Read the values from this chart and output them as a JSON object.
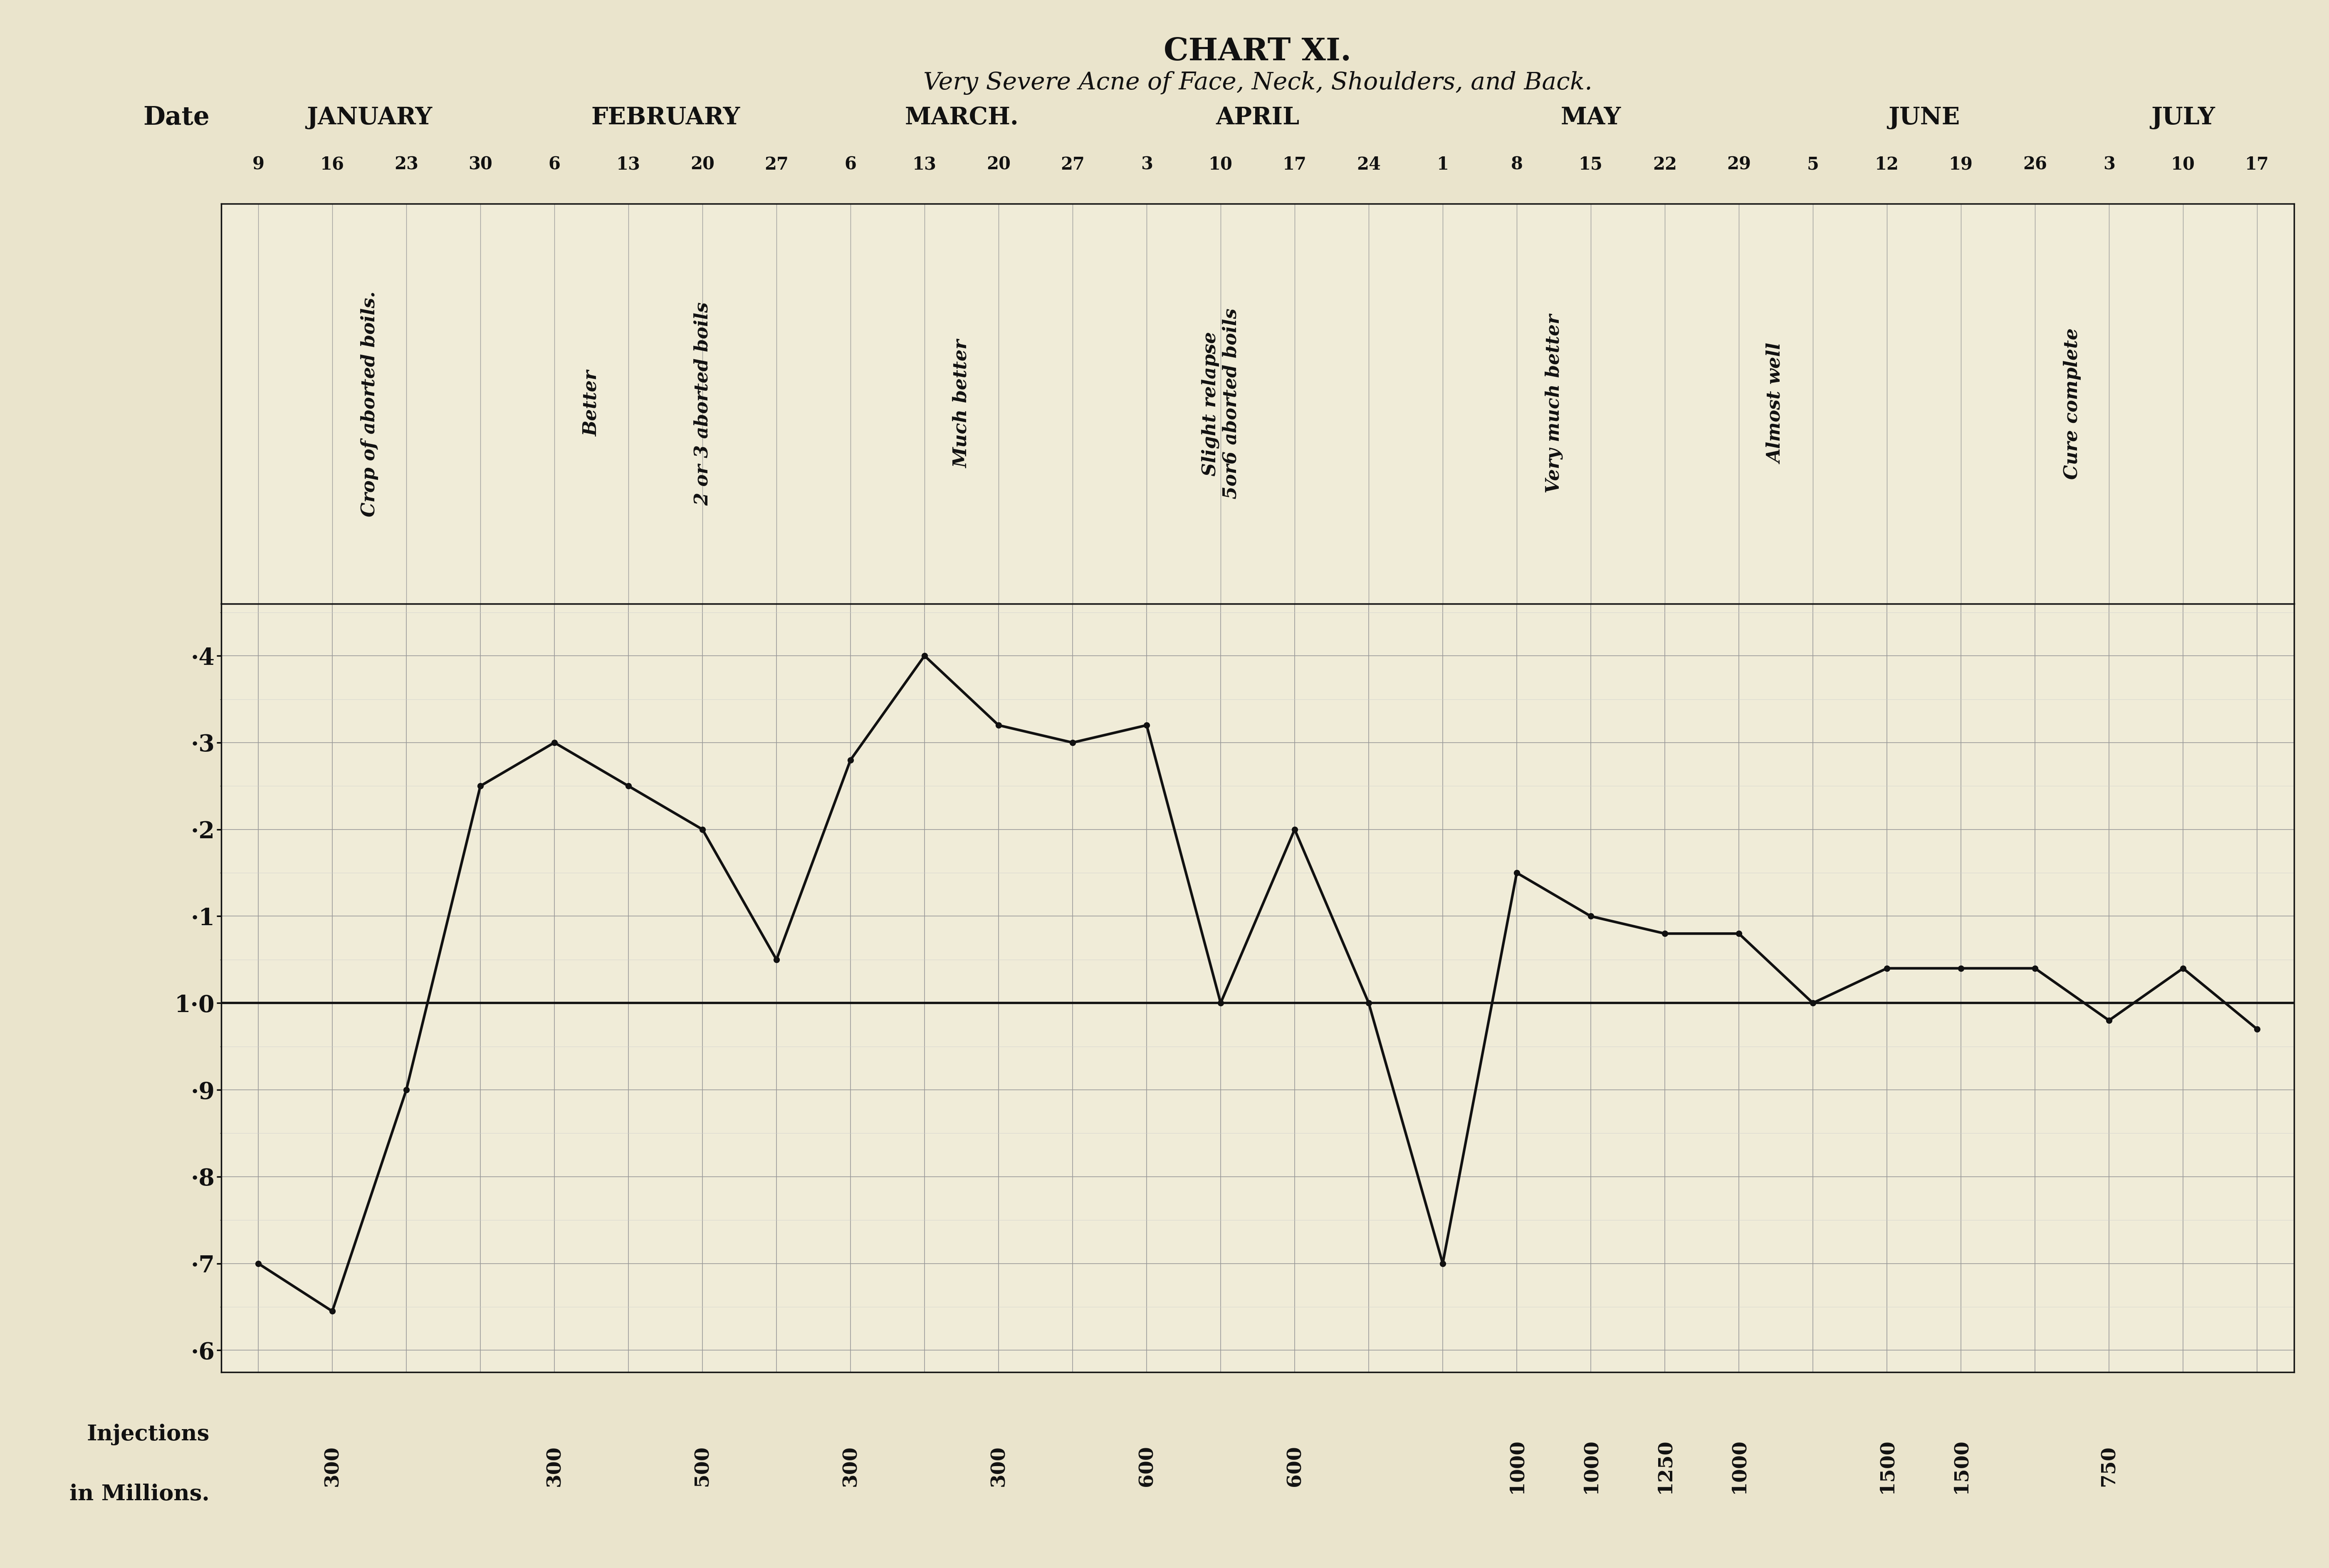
{
  "title": "CHART XI.",
  "subtitle": "Very Severe Acne of Face, Neck, Shoulders, and Back.",
  "background_color": "#EAE4CC",
  "plot_bg_color": "#F0ECD8",
  "month_labels": [
    "JANUARY",
    "FEBRUARY",
    "MARCH.",
    "APRIL",
    "MAY",
    "JUNE",
    "JULY"
  ],
  "month_starts": [
    0,
    4,
    8,
    12,
    16,
    21,
    25
  ],
  "month_ends": [
    3,
    7,
    11,
    15,
    20,
    24,
    27
  ],
  "date_labels": [
    "9",
    "16",
    "23",
    "30",
    "6",
    "13",
    "20",
    "27",
    "6",
    "13",
    "20",
    "27",
    "3",
    "10",
    "17",
    "24",
    "1",
    "8",
    "15",
    "22",
    "29",
    "5",
    "12",
    "19",
    "26",
    "3",
    "10",
    "17"
  ],
  "y_data": [
    0.7,
    0.645,
    0.9,
    1.25,
    1.3,
    1.25,
    1.2,
    1.05,
    1.28,
    1.4,
    1.32,
    1.3,
    1.32,
    1.0,
    1.2,
    1.0,
    0.7,
    1.15,
    1.1,
    1.08,
    1.08,
    1.0,
    1.04,
    1.04,
    1.04,
    0.98,
    1.04,
    0.97
  ],
  "ytick_positions": [
    0.6,
    0.7,
    0.8,
    0.9,
    1.0,
    1.1,
    1.2,
    1.3,
    1.4
  ],
  "ytick_labels": [
    "·6",
    "·7",
    "·8",
    "·9",
    "1·0",
    "·1",
    "·2",
    "·3",
    "·4"
  ],
  "ylim": [
    0.575,
    1.46
  ],
  "annotations": [
    {
      "text": "Crop of aborted boils.",
      "x": 1.5
    },
    {
      "text": "Better",
      "x": 4.5
    },
    {
      "text": "2 or 3 aborted boils",
      "x": 6.0
    },
    {
      "text": "Much better",
      "x": 9.5
    },
    {
      "text": "Slight relapse\n5or6 aborted boils",
      "x": 13.0
    },
    {
      "text": "Very much better",
      "x": 17.5
    },
    {
      "text": "Almost well",
      "x": 20.5
    },
    {
      "text": "Cure complete",
      "x": 24.5
    }
  ],
  "injections": [
    [
      1,
      "300"
    ],
    [
      4,
      "300"
    ],
    [
      6,
      "500"
    ],
    [
      8,
      "300"
    ],
    [
      10,
      "300"
    ],
    [
      12,
      "600"
    ],
    [
      14,
      "600"
    ],
    [
      17,
      "1000"
    ],
    [
      18,
      "1000"
    ],
    [
      19,
      "1250"
    ],
    [
      20,
      "1000"
    ],
    [
      22,
      "1500"
    ],
    [
      23,
      "1500"
    ],
    [
      25,
      "750"
    ]
  ],
  "line_color": "#111111",
  "grid_color": "#999999",
  "text_color": "#111111",
  "grid_minor_color": "#cccccc"
}
